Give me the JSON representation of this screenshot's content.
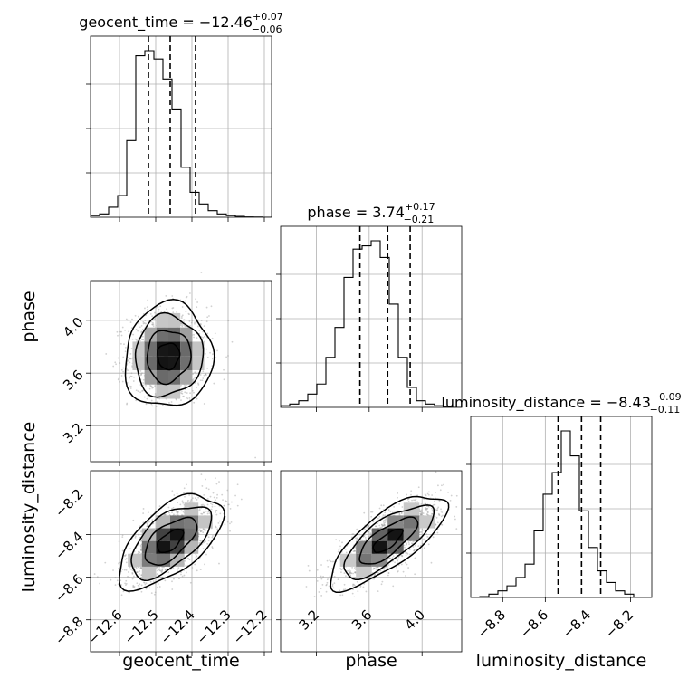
{
  "chart_data": {
    "type": "corner",
    "parameters": [
      "geocent_time",
      "phase",
      "luminosity_distance"
    ],
    "axis_labels": [
      "geocent_time",
      "phase",
      "luminosity_distance"
    ],
    "titles": [
      {
        "param": "geocent_time",
        "median": "−12.46",
        "plus": "+0.07",
        "minus": "−0.06"
      },
      {
        "param": "phase",
        "median": "3.74",
        "plus": "+0.17",
        "minus": "−0.21"
      },
      {
        "param": "luminosity_distance",
        "median": "−8.43",
        "plus": "+0.09",
        "minus": "−0.11"
      }
    ],
    "ranges": [
      [
        -12.68,
        -12.18
      ],
      [
        2.93,
        4.3
      ],
      [
        -8.95,
        -8.1
      ]
    ],
    "ticks": [
      {
        "values": [
          -12.6,
          -12.5,
          -12.4,
          -12.3,
          -12.2
        ],
        "labels": [
          "−12.6",
          "−12.5",
          "−12.4",
          "−12.3",
          "−12.2"
        ]
      },
      {
        "values": [
          3.2,
          3.6,
          4.0
        ],
        "labels": [
          "3.2",
          "3.6",
          "4.0"
        ]
      },
      {
        "values": [
          -8.8,
          -8.6,
          -8.4,
          -8.2
        ],
        "labels": [
          "−8.8",
          "−8.6",
          "−8.4",
          "−8.2"
        ]
      }
    ],
    "quantiles": [
      [
        -12.52,
        -12.46,
        -12.39
      ],
      [
        3.53,
        3.74,
        3.91
      ],
      [
        -8.54,
        -8.43,
        -8.34
      ]
    ],
    "histograms": [
      {
        "edges_start": -12.68,
        "bin_width": 0.025,
        "counts": [
          0.01,
          0.02,
          0.06,
          0.13,
          0.46,
          0.97,
          1.0,
          0.95,
          0.83,
          0.65,
          0.3,
          0.15,
          0.08,
          0.04,
          0.02,
          0.01,
          0.005,
          0.002,
          0.001,
          0.0
        ]
      },
      {
        "edges_start": 2.93,
        "bin_width": 0.0685,
        "counts": [
          0.01,
          0.02,
          0.04,
          0.08,
          0.14,
          0.3,
          0.48,
          0.78,
          0.95,
          0.97,
          1.0,
          0.9,
          0.62,
          0.3,
          0.12,
          0.04,
          0.02,
          0.01,
          0.005,
          0.0
        ]
      },
      {
        "edges_start": -8.95,
        "bin_width": 0.0425,
        "counts": [
          0.0,
          0.005,
          0.02,
          0.04,
          0.07,
          0.12,
          0.2,
          0.4,
          0.62,
          0.75,
          1.0,
          0.85,
          0.52,
          0.3,
          0.16,
          0.09,
          0.04,
          0.02,
          0.0,
          0.0
        ]
      }
    ],
    "joint": [
      {
        "x": "geocent_time",
        "y": "phase",
        "mean": [
          -12.465,
          3.73
        ],
        "sd": [
          0.055,
          0.18
        ],
        "corr": 0.05
      },
      {
        "x": "geocent_time",
        "y": "luminosity_distance",
        "mean": [
          -12.46,
          -8.43
        ],
        "sd": [
          0.065,
          0.1
        ],
        "corr": 0.6
      },
      {
        "x": "phase",
        "y": "luminosity_distance",
        "mean": [
          3.74,
          -8.43
        ],
        "sd": [
          0.2,
          0.1
        ],
        "corr": 0.75
      }
    ],
    "grid": true
  }
}
